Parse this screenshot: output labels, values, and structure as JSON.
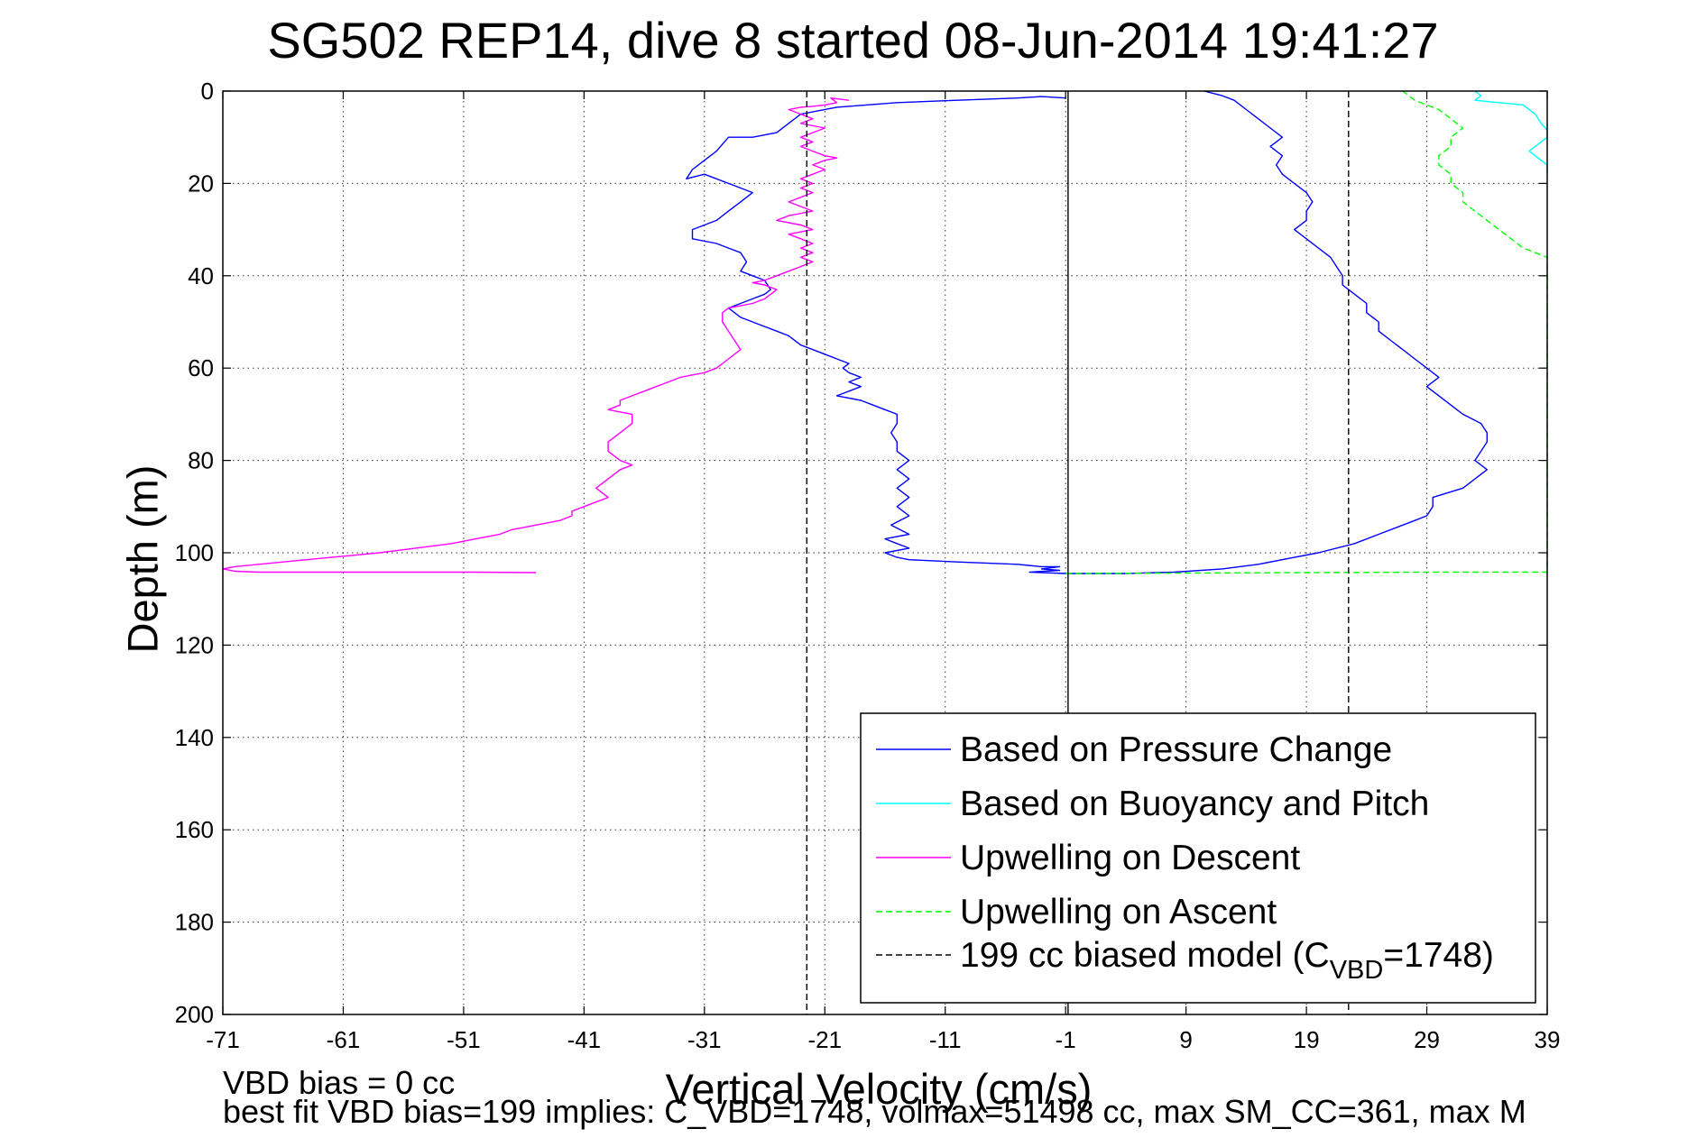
{
  "chart_data": {
    "type": "line",
    "title": "SG502 REP14, dive 8 started 08-Jun-2014 19:41:27",
    "xlabel": "Vertical Velocity (cm/s)",
    "ylabel": "Depth (m)",
    "xlim": [
      -71,
      39
    ],
    "ylim": [
      0,
      200
    ],
    "y_reversed": true,
    "grid": true,
    "xticks": [
      -71,
      -61,
      -51,
      -41,
      -31,
      -21,
      -11,
      -1,
      9,
      19,
      29,
      39
    ],
    "yticks": [
      0,
      20,
      40,
      60,
      80,
      100,
      120,
      140,
      160,
      180,
      200
    ],
    "xtick_labels": [
      "-71",
      "-61",
      "-51",
      "-41",
      "-31",
      "-21",
      "-11",
      "-1",
      "9",
      "19",
      "29",
      "39"
    ],
    "ytick_labels": [
      "0",
      "20",
      "40",
      "60",
      "80",
      "100",
      "120",
      "140",
      "160",
      "180",
      "200"
    ],
    "legend_position": "bottom-right",
    "notes": [
      "VBD bias = 0 cc",
      "best fit VBD bias=199 implies: C_VBD=1748, volmax=51498 cc, max SM_CC=361, max M"
    ],
    "legend": [
      {
        "label": "Based on Pressure Change",
        "color": "#0000ff",
        "dash": "solid"
      },
      {
        "label": "Based on Buoyancy and Pitch",
        "color": "#00ffff",
        "dash": "solid"
      },
      {
        "label": "Upwelling on Descent",
        "color": "#ff00ff",
        "dash": "solid"
      },
      {
        "label": "Upwelling on Ascent",
        "color": "#00ff00",
        "dash": "dashed"
      },
      {
        "label_main": "199 cc biased model (C",
        "label_sub": "VBD",
        "label_end": "=1748)",
        "color": "#000000",
        "dash": "dashed"
      }
    ],
    "series": [
      {
        "name": "Based on Pressure Change",
        "color": "#0000ff",
        "dash": "solid",
        "points": [
          [
            -1,
            1.5
          ],
          [
            -3,
            1.2
          ],
          [
            -5,
            1.5
          ],
          [
            -10,
            2
          ],
          [
            -15,
            2.5
          ],
          [
            -20,
            3.5
          ],
          [
            -23,
            5
          ],
          [
            -24,
            7
          ],
          [
            -25,
            9
          ],
          [
            -27,
            10
          ],
          [
            -29,
            10
          ],
          [
            -30,
            13
          ],
          [
            -31,
            15
          ],
          [
            -32,
            17
          ],
          [
            -32.5,
            19
          ],
          [
            -31,
            18
          ],
          [
            -30,
            19
          ],
          [
            -29,
            20
          ],
          [
            -28,
            21
          ],
          [
            -27,
            22
          ],
          [
            -28,
            24
          ],
          [
            -29,
            26
          ],
          [
            -30,
            28
          ],
          [
            -32,
            30
          ],
          [
            -32,
            32
          ],
          [
            -30,
            33
          ],
          [
            -29,
            34
          ],
          [
            -28,
            35
          ],
          [
            -27.5,
            37
          ],
          [
            -28,
            39
          ],
          [
            -27,
            40
          ],
          [
            -26,
            41
          ],
          [
            -25.5,
            43
          ],
          [
            -26,
            44
          ],
          [
            -27,
            45
          ],
          [
            -28,
            46
          ],
          [
            -29,
            47
          ],
          [
            -28,
            49
          ],
          [
            -27,
            50
          ],
          [
            -26,
            51
          ],
          [
            -25,
            52
          ],
          [
            -24,
            53
          ],
          [
            -23,
            55
          ],
          [
            -22,
            56
          ],
          [
            -21,
            57
          ],
          [
            -20,
            58
          ],
          [
            -19,
            59
          ],
          [
            -19.5,
            60
          ],
          [
            -19,
            61
          ],
          [
            -18,
            62
          ],
          [
            -19,
            63
          ],
          [
            -18,
            64
          ],
          [
            -19,
            65
          ],
          [
            -20,
            66
          ],
          [
            -18,
            67
          ],
          [
            -17,
            68
          ],
          [
            -16,
            69
          ],
          [
            -15,
            70
          ],
          [
            -15,
            72
          ],
          [
            -15.5,
            74
          ],
          [
            -15,
            76
          ],
          [
            -15,
            78
          ],
          [
            -14,
            80
          ],
          [
            -15,
            82
          ],
          [
            -14,
            84
          ],
          [
            -15,
            86
          ],
          [
            -14,
            88
          ],
          [
            -15,
            90
          ],
          [
            -14,
            92
          ],
          [
            -15.5,
            94
          ],
          [
            -14,
            96
          ],
          [
            -16,
            97
          ],
          [
            -15,
            98
          ],
          [
            -14,
            99
          ],
          [
            -16,
            100
          ],
          [
            -15,
            101
          ],
          [
            -14,
            101.5
          ],
          [
            -10,
            102
          ],
          [
            -5,
            102.5
          ],
          [
            -3,
            103
          ],
          [
            -1.5,
            103
          ],
          [
            -3,
            103.5
          ],
          [
            -1.5,
            103.8
          ],
          [
            -4,
            104.2
          ],
          [
            -1,
            104.5
          ],
          [
            2,
            104.5
          ],
          [
            4,
            104.5
          ],
          [
            8,
            104.2
          ],
          [
            12,
            103.5
          ],
          [
            15,
            102.5
          ],
          [
            18,
            101
          ],
          [
            20,
            100
          ],
          [
            23,
            98
          ],
          [
            25,
            96
          ],
          [
            27,
            94
          ],
          [
            28,
            93
          ],
          [
            29,
            92
          ],
          [
            29.5,
            90
          ],
          [
            29.5,
            88
          ],
          [
            32,
            86
          ],
          [
            33,
            84
          ],
          [
            34,
            82
          ],
          [
            33,
            80
          ],
          [
            33.5,
            78
          ],
          [
            34,
            76
          ],
          [
            34,
            74
          ],
          [
            33.5,
            72
          ],
          [
            32,
            70
          ],
          [
            31,
            68
          ],
          [
            30,
            66
          ],
          [
            29,
            64
          ],
          [
            30,
            62
          ],
          [
            29,
            60
          ],
          [
            28,
            58
          ],
          [
            27,
            56
          ],
          [
            26,
            54
          ],
          [
            25,
            52
          ],
          [
            25,
            50
          ],
          [
            24,
            48
          ],
          [
            24,
            46
          ],
          [
            23,
            44
          ],
          [
            22,
            42
          ],
          [
            22,
            40
          ],
          [
            21.5,
            38
          ],
          [
            21,
            36
          ],
          [
            20,
            34
          ],
          [
            19,
            32
          ],
          [
            18,
            30
          ],
          [
            19,
            28
          ],
          [
            19,
            26
          ],
          [
            19.5,
            24
          ],
          [
            19,
            22
          ],
          [
            18,
            20
          ],
          [
            17,
            18
          ],
          [
            16.5,
            16
          ],
          [
            17,
            14
          ],
          [
            16,
            12
          ],
          [
            17,
            10
          ],
          [
            16,
            8
          ],
          [
            15,
            6
          ],
          [
            14,
            4
          ],
          [
            13,
            2
          ],
          [
            12,
            1
          ],
          [
            10.5,
            0
          ]
        ]
      },
      {
        "name": "Based on Buoyancy and Pitch",
        "color": "#00ffff",
        "dash": "solid",
        "points": [
          [
            33,
            0
          ],
          [
            33.5,
            1
          ],
          [
            33,
            2
          ],
          [
            35,
            2.5
          ],
          [
            37,
            3
          ],
          [
            38,
            5
          ],
          [
            38.5,
            7
          ],
          [
            39,
            8.5
          ],
          [
            39,
            10
          ],
          [
            38,
            12
          ],
          [
            37.5,
            13
          ],
          [
            38,
            14
          ],
          [
            38.5,
            15
          ],
          [
            39,
            16
          ],
          [
            40,
            17.5
          ]
        ]
      },
      {
        "name": "Upwelling on Descent",
        "color": "#ff00ff",
        "dash": "solid",
        "points": [
          [
            -19,
            2
          ],
          [
            -20.5,
            1.5
          ],
          [
            -20,
            2.5
          ],
          [
            -21,
            3
          ],
          [
            -22,
            3.3
          ],
          [
            -23,
            3.5
          ],
          [
            -24,
            4
          ],
          [
            -23,
            5
          ],
          [
            -22,
            6
          ],
          [
            -23,
            7
          ],
          [
            -21,
            8
          ],
          [
            -22,
            9
          ],
          [
            -23,
            10
          ],
          [
            -22,
            11
          ],
          [
            -23,
            12
          ],
          [
            -22,
            13
          ],
          [
            -21,
            14
          ],
          [
            -20,
            14.5
          ],
          [
            -21,
            15
          ],
          [
            -22,
            16
          ],
          [
            -21,
            17
          ],
          [
            -22,
            18
          ],
          [
            -23,
            19
          ],
          [
            -22,
            20
          ],
          [
            -23,
            21
          ],
          [
            -22,
            22
          ],
          [
            -23,
            23
          ],
          [
            -24,
            24
          ],
          [
            -23,
            25
          ],
          [
            -22,
            26
          ],
          [
            -24,
            27
          ],
          [
            -25,
            28
          ],
          [
            -23,
            29
          ],
          [
            -22,
            30
          ],
          [
            -24,
            31
          ],
          [
            -23,
            32
          ],
          [
            -22,
            33
          ],
          [
            -23,
            34
          ],
          [
            -22,
            35
          ],
          [
            -23,
            36
          ],
          [
            -22,
            37
          ],
          [
            -23,
            38
          ],
          [
            -24,
            39
          ],
          [
            -25,
            40
          ],
          [
            -26,
            41
          ],
          [
            -27,
            41.5
          ],
          [
            -26,
            42
          ],
          [
            -25,
            43
          ],
          [
            -25.5,
            44
          ],
          [
            -26,
            45
          ],
          [
            -27,
            46
          ],
          [
            -28,
            46.5
          ],
          [
            -29,
            47
          ],
          [
            -29.5,
            48
          ],
          [
            -29.5,
            50
          ],
          [
            -29,
            52
          ],
          [
            -28.5,
            54
          ],
          [
            -28,
            56
          ],
          [
            -29,
            58
          ],
          [
            -30,
            60
          ],
          [
            -31,
            61
          ],
          [
            -33,
            62
          ],
          [
            -34,
            63
          ],
          [
            -35,
            64
          ],
          [
            -36,
            65
          ],
          [
            -37,
            66
          ],
          [
            -38,
            67
          ],
          [
            -38,
            68
          ],
          [
            -39,
            69
          ],
          [
            -37,
            70
          ],
          [
            -37,
            72
          ],
          [
            -38,
            74
          ],
          [
            -39,
            76
          ],
          [
            -39,
            78
          ],
          [
            -38,
            80
          ],
          [
            -37,
            81
          ],
          [
            -38,
            82
          ],
          [
            -39,
            84
          ],
          [
            -40,
            86
          ],
          [
            -39,
            88
          ],
          [
            -40,
            89
          ],
          [
            -41,
            90
          ],
          [
            -42,
            91
          ],
          [
            -42,
            92
          ],
          [
            -43,
            93
          ],
          [
            -45,
            94
          ],
          [
            -47,
            95
          ],
          [
            -48,
            96
          ],
          [
            -50,
            97
          ],
          [
            -52,
            98
          ],
          [
            -55,
            99
          ],
          [
            -58,
            100
          ],
          [
            -62,
            101
          ],
          [
            -66,
            102
          ],
          [
            -70,
            103
          ],
          [
            -71,
            103.5
          ],
          [
            -70,
            104
          ],
          [
            -68,
            104.2
          ],
          [
            -60,
            104.2
          ],
          [
            -50,
            104.2
          ],
          [
            -45,
            104.3
          ]
        ]
      },
      {
        "name": "Upwelling on Ascent",
        "color": "#00ff00",
        "dash": "dashed",
        "points": [
          [
            -1,
            104.5
          ],
          [
            9,
            104.4
          ],
          [
            19,
            104.3
          ],
          [
            29,
            104.2
          ],
          [
            39,
            104.2
          ],
          [
            40,
            104.2
          ],
          [
            40,
            38
          ],
          [
            39,
            36
          ],
          [
            37,
            34
          ],
          [
            36,
            32
          ],
          [
            35,
            30
          ],
          [
            34,
            28
          ],
          [
            33,
            26
          ],
          [
            32,
            24
          ],
          [
            32,
            22
          ],
          [
            31,
            20
          ],
          [
            31,
            18
          ],
          [
            30,
            16
          ],
          [
            30,
            14
          ],
          [
            31,
            12
          ],
          [
            31,
            10
          ],
          [
            32,
            8
          ],
          [
            31,
            6
          ],
          [
            30,
            4
          ],
          [
            29,
            3
          ],
          [
            28,
            2
          ],
          [
            27,
            0
          ]
        ]
      },
      {
        "name": "199 cc biased model (CVBD=1748)",
        "color": "#000000",
        "dash": "dashed",
        "points": [
          [
            -22.5,
            0
          ],
          [
            -22.5,
            200
          ]
        ]
      },
      {
        "name": "199 cc biased model (CVBD=1748) ascent",
        "color": "#000000",
        "dash": "dashed",
        "points": [
          [
            22.5,
            0
          ],
          [
            22.5,
            200
          ]
        ]
      },
      {
        "name": "zero line",
        "color": "#000000",
        "dash": "solid",
        "points": [
          [
            -0.8,
            0
          ],
          [
            -0.8,
            200
          ]
        ]
      }
    ]
  }
}
